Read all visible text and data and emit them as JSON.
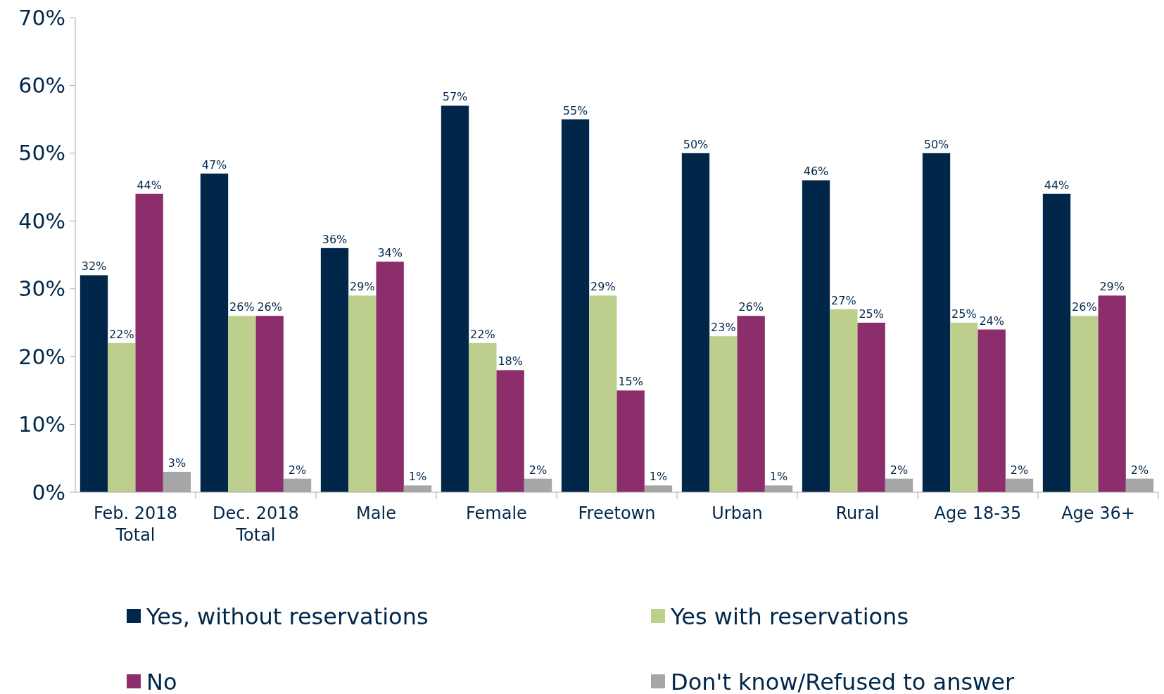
{
  "chart_data": {
    "type": "bar",
    "categories": [
      "Feb. 2018 Total",
      "Dec. 2018 Total",
      "Male",
      "Female",
      "Freetown",
      "Urban",
      "Rural",
      "Age 18-35",
      "Age 36+"
    ],
    "series": [
      {
        "name": "Yes, without reservations",
        "color": "#00274a",
        "values": [
          32,
          47,
          36,
          57,
          55,
          50,
          46,
          50,
          44
        ],
        "value_labels": [
          "32%",
          "47%",
          "36%",
          "57%",
          "55%",
          "50%",
          "46%",
          "50%",
          "44%"
        ]
      },
      {
        "name": "Yes with reservations",
        "color": "#bccf8c",
        "values": [
          22,
          26,
          29,
          22,
          29,
          23,
          27,
          25,
          26
        ],
        "value_labels": [
          "22%",
          "26%",
          "29%",
          "22%",
          "29%",
          "23%",
          "27%",
          "25%",
          "26%"
        ]
      },
      {
        "name": "No",
        "color": "#8b2e6b",
        "values": [
          44,
          26,
          34,
          18,
          15,
          26,
          25,
          24,
          29
        ],
        "value_labels": [
          "44%",
          "26%",
          "34%",
          "18%",
          "15%",
          "26%",
          "25%",
          "24%",
          "29%"
        ]
      },
      {
        "name": "Don't know/Refused to answer",
        "color": "#a6a6a6",
        "values": [
          3,
          2,
          1,
          2,
          1,
          1,
          2,
          2,
          2
        ],
        "value_labels": [
          "3%",
          "2%",
          "1%",
          "2%",
          "1%",
          "1%",
          "2%",
          "2%",
          "2%"
        ]
      }
    ],
    "ylim": [
      0,
      70
    ],
    "yticks": [
      {
        "value": 0,
        "label": "0%"
      },
      {
        "value": 10,
        "label": "10%"
      },
      {
        "value": 20,
        "label": "20%"
      },
      {
        "value": 30,
        "label": "30%"
      },
      {
        "value": 40,
        "label": "40%"
      },
      {
        "value": 50,
        "label": "50%"
      },
      {
        "value": 60,
        "label": "60%"
      },
      {
        "value": 70,
        "label": "70%"
      }
    ],
    "grid": false,
    "legend": "bottom"
  }
}
